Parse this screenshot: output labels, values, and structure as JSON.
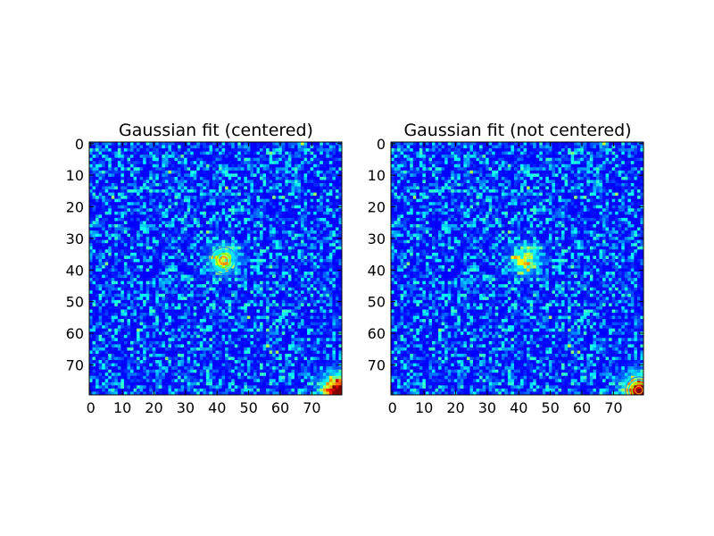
{
  "chart_data": [
    {
      "type": "heatmap",
      "title": "Gaussian fit (centered)",
      "xlabel": "",
      "ylabel": "",
      "xlim": [
        0,
        79
      ],
      "ylim": [
        79,
        0
      ],
      "x_ticks": [
        "0",
        "10",
        "20",
        "30",
        "40",
        "50",
        "60",
        "70"
      ],
      "y_ticks": [
        "0",
        "10",
        "20",
        "30",
        "40",
        "50",
        "60",
        "70"
      ],
      "grid_size": [
        80,
        80
      ],
      "colormap": "jet",
      "background_level": 0.12,
      "source_blob": {
        "x": 42,
        "y": 37,
        "sigma": 3.0,
        "peak": 0.5
      },
      "hot_spots": [
        {
          "x": 67,
          "y": 0,
          "sigma": 0.6,
          "peak": 0.4
        },
        {
          "x": 79,
          "y": 79,
          "sigma": 3.6,
          "peak": 0.95
        }
      ],
      "fit_contours": {
        "x": 42.5,
        "y": 37.5,
        "radii": [
          1.2,
          2.2,
          3.2,
          4.2
        ]
      }
    },
    {
      "type": "heatmap",
      "title": "Gaussian fit (not centered)",
      "xlabel": "",
      "ylabel": "",
      "xlim": [
        0,
        79
      ],
      "ylim": [
        79,
        0
      ],
      "x_ticks": [
        "0",
        "10",
        "20",
        "30",
        "40",
        "50",
        "60",
        "70"
      ],
      "y_ticks": [
        "0",
        "10",
        "20",
        "30",
        "40",
        "50",
        "60",
        "70"
      ],
      "grid_size": [
        80,
        80
      ],
      "colormap": "jet",
      "background_level": 0.12,
      "source_blob": {
        "x": 42,
        "y": 37,
        "sigma": 3.0,
        "peak": 0.5
      },
      "hot_spots": [
        {
          "x": 67,
          "y": 0,
          "sigma": 0.6,
          "peak": 0.4
        },
        {
          "x": 79,
          "y": 79,
          "sigma": 3.6,
          "peak": 0.95
        }
      ],
      "fit_contours": {
        "x": 78.5,
        "y": 78.5,
        "radii": [
          1.2,
          2.2,
          3.2,
          4.2
        ]
      }
    }
  ]
}
